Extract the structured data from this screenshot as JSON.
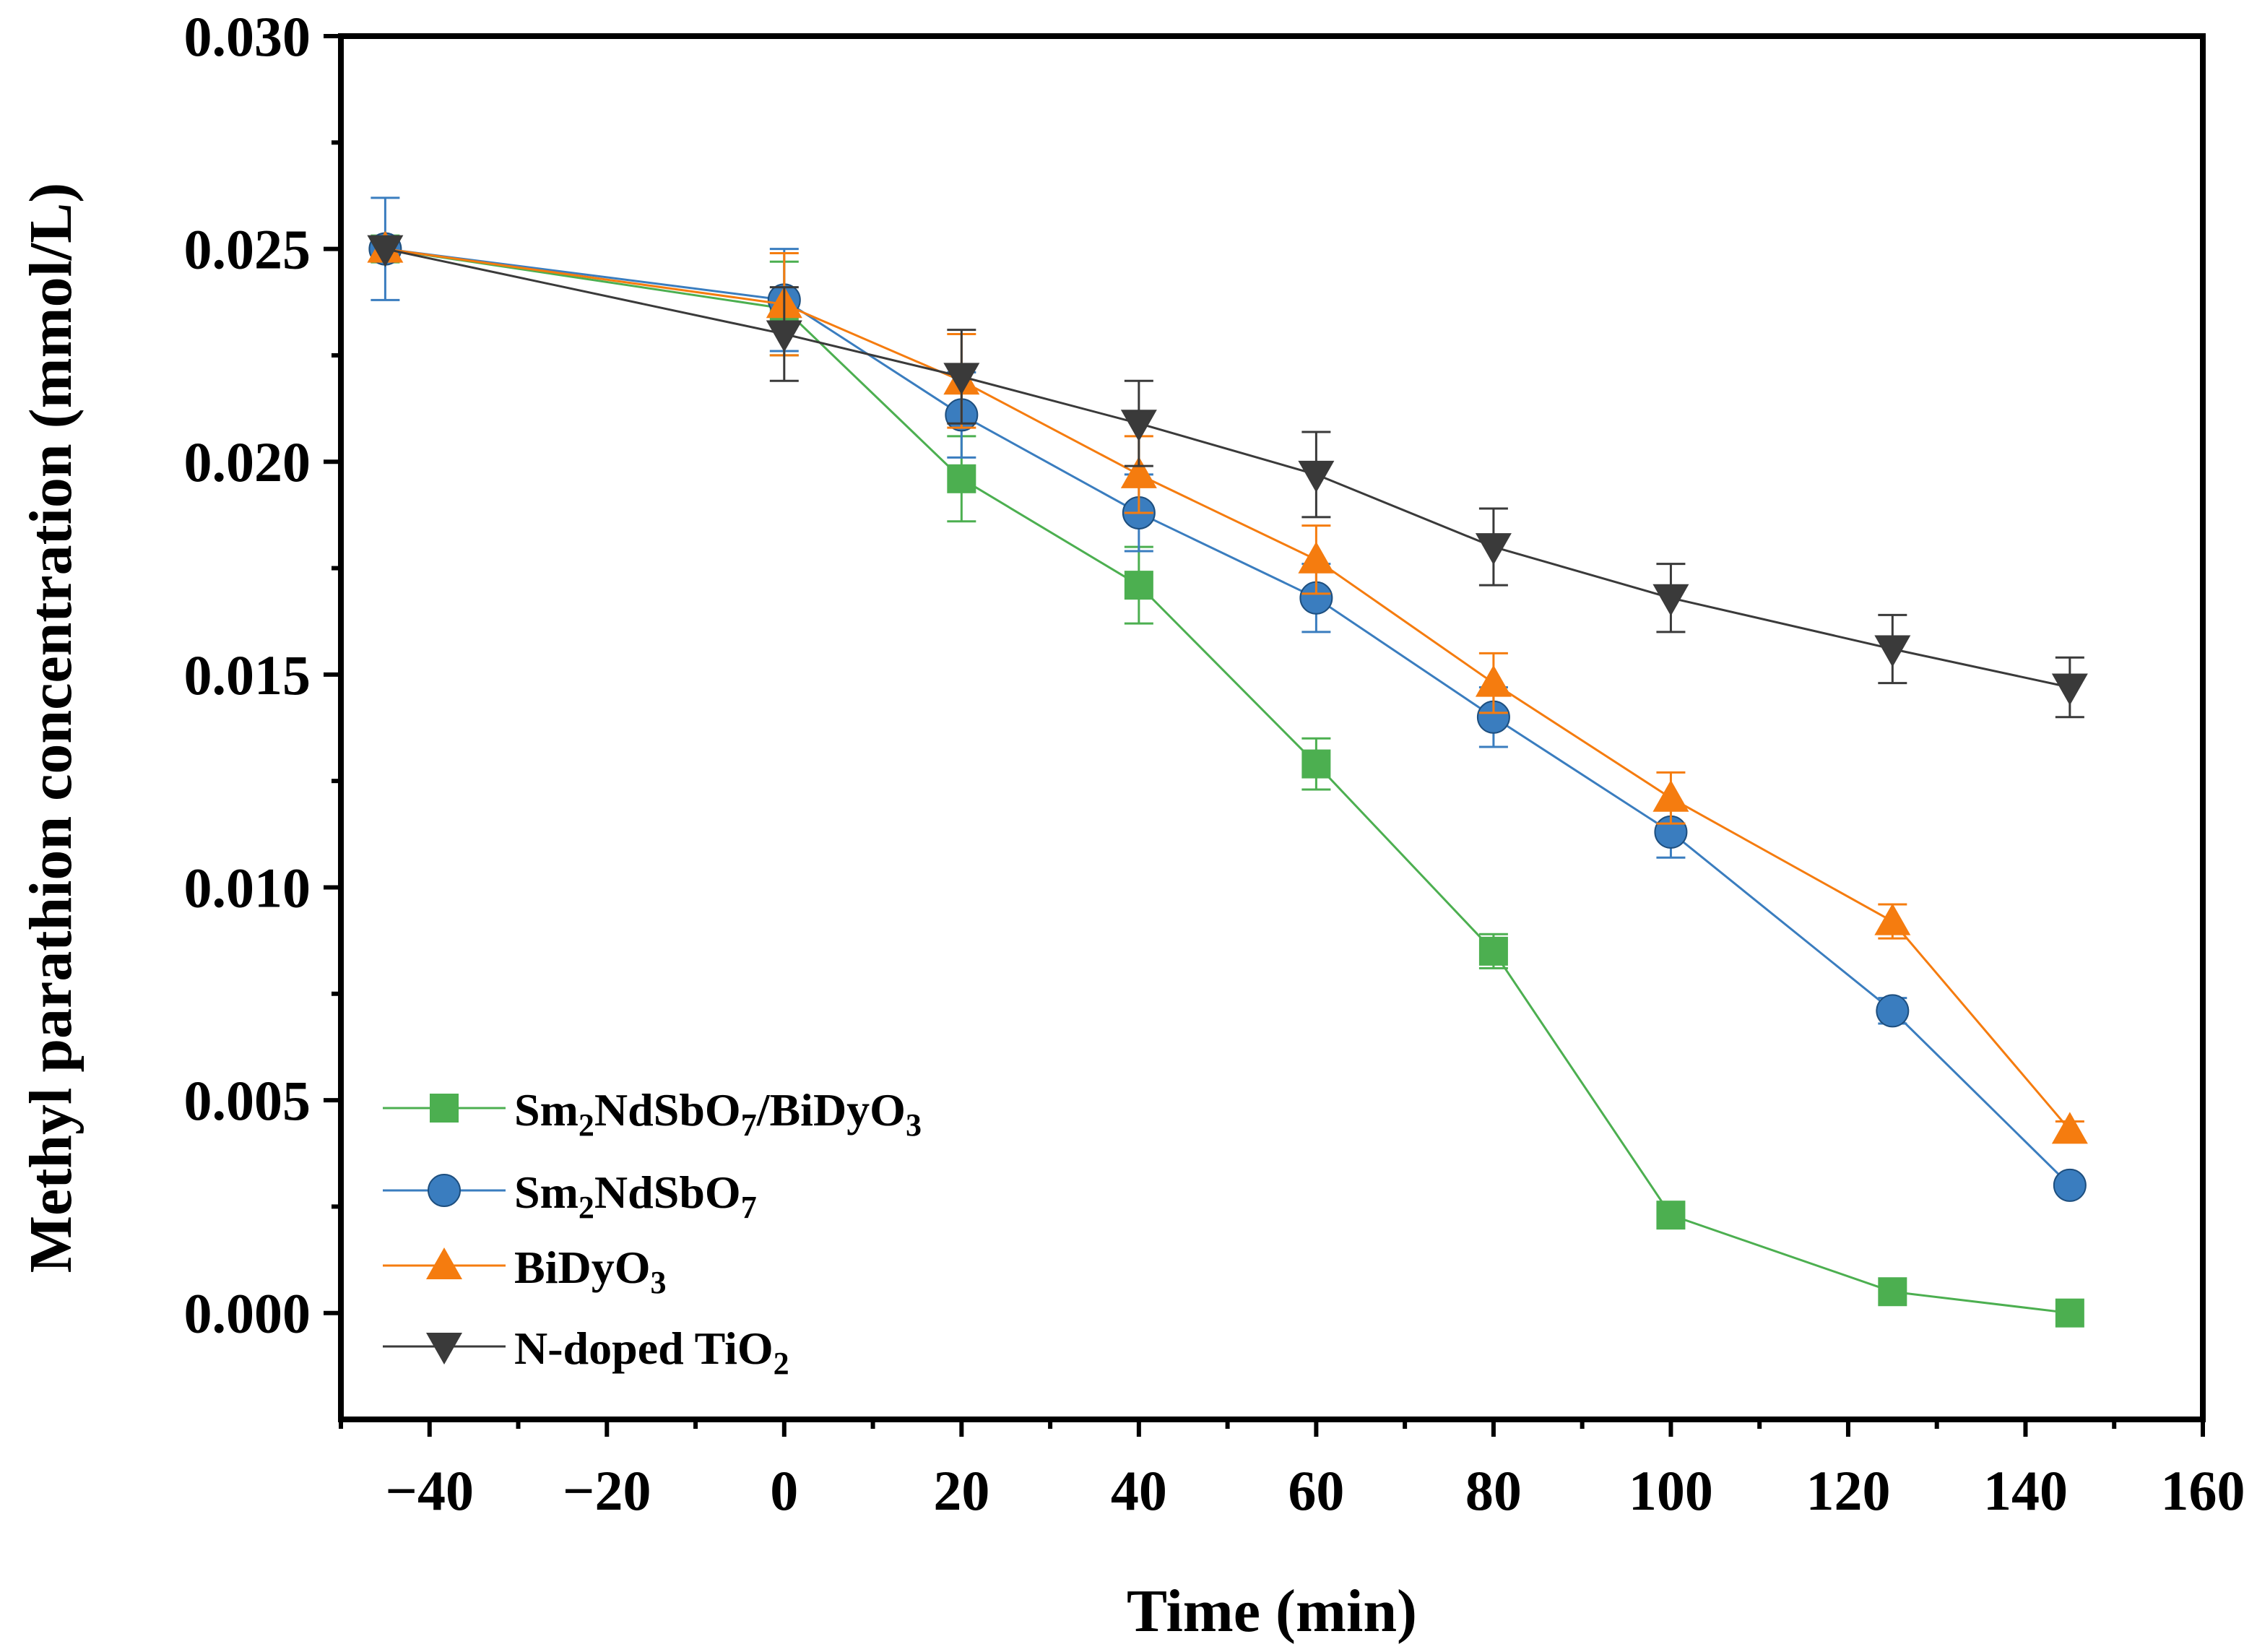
{
  "chart_data": {
    "type": "line",
    "title": "",
    "xlabel": "Time (min)",
    "ylabel": "Methyl parathion concentration (mmol/L)",
    "xlim": [
      -50,
      160
    ],
    "ylim": [
      -0.0025,
      0.03
    ],
    "x_ticks": [
      -40,
      -20,
      0,
      20,
      40,
      60,
      80,
      100,
      120,
      140,
      160
    ],
    "x_tick_labels": [
      "−40",
      "−20",
      "0",
      "20",
      "40",
      "60",
      "80",
      "100",
      "120",
      "140",
      "160"
    ],
    "y_ticks": [
      0.0,
      0.005,
      0.01,
      0.015,
      0.02,
      0.025,
      0.03
    ],
    "y_tick_labels": [
      "0.000",
      "0.005",
      "0.010",
      "0.015",
      "0.020",
      "0.025",
      "0.030"
    ],
    "grid": false,
    "legend_position": "bottom-left",
    "series": [
      {
        "name": "Sm2NdSbO7/BiDyO3",
        "label_parts": [
          [
            "Sm",
            false
          ],
          [
            "2",
            true
          ],
          [
            "NdSbO",
            false
          ],
          [
            "7",
            true
          ],
          [
            "/BiDyO",
            false
          ],
          [
            "3",
            true
          ]
        ],
        "marker": "square",
        "color": "#4caf50",
        "x": [
          -45,
          0,
          20,
          40,
          60,
          80,
          100,
          125,
          145
        ],
        "y": [
          0.025,
          0.0236,
          0.0196,
          0.0171,
          0.0129,
          0.0085,
          0.0023,
          0.0005,
          0.0
        ],
        "err": [
          0.0,
          0.0011,
          0.001,
          0.0009,
          0.0006,
          0.0004,
          0.0,
          0.0,
          0.0
        ]
      },
      {
        "name": "Sm2NdSbO7",
        "label_parts": [
          [
            "Sm",
            false
          ],
          [
            "2",
            true
          ],
          [
            "NdSbO",
            false
          ],
          [
            "7",
            true
          ]
        ],
        "marker": "circle",
        "color": "#3a7dbf",
        "x": [
          -45,
          0,
          20,
          40,
          60,
          80,
          100,
          125,
          145
        ],
        "y": [
          0.025,
          0.0238,
          0.0211,
          0.0188,
          0.0168,
          0.014,
          0.0113,
          0.0071,
          0.003
        ],
        "err": [
          0.0012,
          0.0012,
          0.001,
          0.0009,
          0.0008,
          0.0007,
          0.0006,
          0.0003,
          0.0
        ]
      },
      {
        "name": "BiDyO3",
        "label_parts": [
          [
            "BiDyO",
            false
          ],
          [
            "3",
            true
          ]
        ],
        "marker": "triangle-up",
        "color": "#f57c0f",
        "x": [
          -45,
          0,
          20,
          40,
          60,
          80,
          100,
          125,
          145
        ],
        "y": [
          0.025,
          0.0237,
          0.0219,
          0.0197,
          0.0177,
          0.0148,
          0.0121,
          0.0092,
          0.0043
        ],
        "err": [
          0.0,
          0.0012,
          0.0011,
          0.0009,
          0.0008,
          0.0007,
          0.0006,
          0.0004,
          0.0002
        ]
      },
      {
        "name": "N-doped TiO2",
        "label_parts": [
          [
            "N-doped TiO",
            false
          ],
          [
            "2",
            true
          ]
        ],
        "marker": "triangle-down",
        "color": "#3a3a3a",
        "x": [
          -45,
          0,
          20,
          40,
          60,
          80,
          100,
          125,
          145
        ],
        "y": [
          0.025,
          0.023,
          0.022,
          0.0209,
          0.0197,
          0.018,
          0.0168,
          0.0156,
          0.0147
        ],
        "err": [
          0.0,
          0.0011,
          0.0011,
          0.001,
          0.001,
          0.0009,
          0.0008,
          0.0008,
          0.0007
        ]
      }
    ]
  }
}
